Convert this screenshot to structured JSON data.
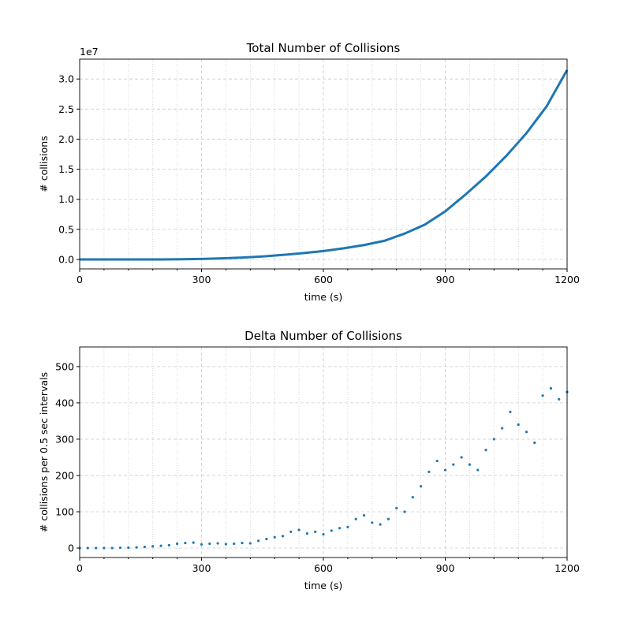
{
  "chart_data": [
    {
      "type": "line",
      "title": "Total Number of Collisions",
      "xlabel": "time (s)",
      "ylabel": "# collisions",
      "offset_label": "1e7",
      "color": "#1f77b4",
      "grid": true,
      "x": [
        0,
        50,
        100,
        150,
        200,
        250,
        300,
        350,
        400,
        450,
        500,
        550,
        600,
        650,
        700,
        750,
        800,
        850,
        900,
        950,
        1000,
        1050,
        1100,
        1150,
        1200
      ],
      "values": [
        0,
        0,
        0,
        0,
        0.001,
        0.003,
        0.008,
        0.018,
        0.032,
        0.05,
        0.075,
        0.105,
        0.14,
        0.185,
        0.24,
        0.31,
        0.43,
        0.58,
        0.8,
        1.08,
        1.38,
        1.72,
        2.1,
        2.55,
        3.15
      ],
      "xlim": [
        0,
        1200
      ],
      "xticks": [
        0,
        300,
        600,
        900,
        1200
      ],
      "xminorticks": [
        60,
        120,
        180,
        240,
        360,
        420,
        480,
        540,
        660,
        720,
        780,
        840,
        960,
        1020,
        1080,
        1140
      ],
      "ylim": [
        -0.157,
        3.33
      ],
      "yticks": [
        {
          "value": 0,
          "label": "0.0"
        },
        {
          "value": 0.5,
          "label": "0.5"
        },
        {
          "value": 1,
          "label": "1.0"
        },
        {
          "value": 1.5,
          "label": "1.5"
        },
        {
          "value": 2,
          "label": "2.0"
        },
        {
          "value": 2.5,
          "label": "2.5"
        },
        {
          "value": 3,
          "label": "3.0"
        }
      ]
    },
    {
      "type": "scatter",
      "title": "Delta Number of Collisions",
      "xlabel": "time (s)",
      "ylabel": "# collisions per 0.5 sec intervals",
      "color": "#1f77b4",
      "grid": true,
      "x": [
        0,
        20,
        40,
        60,
        80,
        100,
        120,
        140,
        160,
        180,
        200,
        220,
        240,
        260,
        280,
        300,
        320,
        340,
        360,
        380,
        400,
        420,
        440,
        460,
        480,
        500,
        520,
        540,
        560,
        580,
        600,
        620,
        640,
        660,
        680,
        700,
        720,
        740,
        760,
        780,
        800,
        820,
        840,
        860,
        880,
        900,
        920,
        940,
        960,
        980,
        1000,
        1020,
        1040,
        1060,
        1080,
        1100,
        1120,
        1140,
        1160,
        1180,
        1200
      ],
      "values": [
        0,
        0,
        0,
        0,
        0,
        1,
        1,
        2,
        3,
        5,
        6,
        8,
        12,
        14,
        15,
        10,
        12,
        13,
        11,
        12,
        14,
        13,
        20,
        25,
        30,
        33,
        45,
        50,
        40,
        45,
        38,
        48,
        55,
        58,
        80,
        90,
        70,
        65,
        80,
        110,
        100,
        140,
        170,
        210,
        240,
        215,
        230,
        250,
        230,
        215,
        270,
        300,
        330,
        375,
        340,
        320,
        290,
        420,
        440,
        410,
        430
      ],
      "xlim": [
        0,
        1200
      ],
      "xticks": [
        0,
        300,
        600,
        900,
        1200
      ],
      "xminorticks": [
        60,
        120,
        180,
        240,
        360,
        420,
        480,
        540,
        660,
        720,
        780,
        840,
        960,
        1020,
        1080,
        1140
      ],
      "ylim": [
        -26,
        554
      ],
      "yticks": [
        0,
        100,
        200,
        300,
        400,
        500
      ]
    }
  ]
}
